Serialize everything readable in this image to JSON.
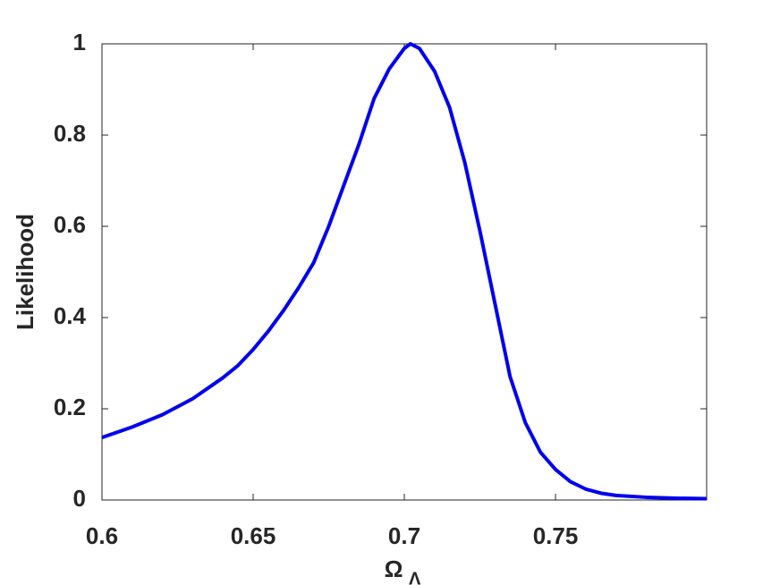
{
  "chart_data": {
    "type": "line",
    "ylabel": "Likelihood",
    "xlabel": "Ω",
    "xlabel_sub": "Λ",
    "x": [
      0.6,
      0.61,
      0.62,
      0.63,
      0.64,
      0.645,
      0.65,
      0.655,
      0.66,
      0.665,
      0.67,
      0.675,
      0.68,
      0.685,
      0.69,
      0.695,
      0.7,
      0.702,
      0.705,
      0.71,
      0.715,
      0.72,
      0.725,
      0.73,
      0.735,
      0.74,
      0.745,
      0.75,
      0.755,
      0.76,
      0.765,
      0.77,
      0.78,
      0.79,
      0.8
    ],
    "series": [
      {
        "color": "#0000ee",
        "values": [
          0.137,
          0.16,
          0.187,
          0.222,
          0.268,
          0.295,
          0.33,
          0.37,
          0.415,
          0.465,
          0.52,
          0.6,
          0.69,
          0.78,
          0.88,
          0.945,
          0.99,
          1.0,
          0.99,
          0.94,
          0.86,
          0.74,
          0.59,
          0.43,
          0.27,
          0.17,
          0.105,
          0.067,
          0.04,
          0.024,
          0.015,
          0.01,
          0.006,
          0.004,
          0.003
        ]
      }
    ],
    "xlim": [
      0.6,
      0.8
    ],
    "xticks": [
      0.6,
      0.65,
      0.7,
      0.75
    ],
    "ylim": [
      0,
      1
    ],
    "yticks": [
      0,
      0.2,
      0.4,
      0.6,
      0.8,
      1
    ]
  }
}
